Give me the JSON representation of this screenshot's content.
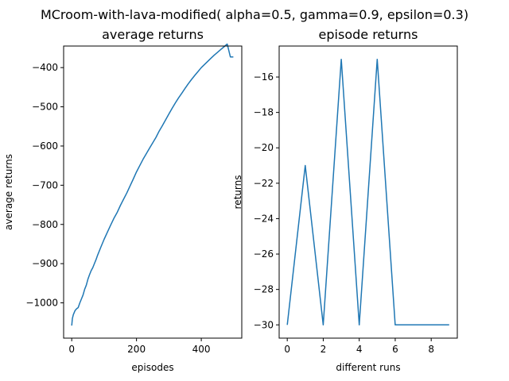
{
  "figure": {
    "suptitle": "MCroom-with-lava-modified( alpha=0.5, gamma=0.9, epsilon=0.3)"
  },
  "colors": {
    "line": "#1f77b4",
    "axis": "#000000",
    "background": "#ffffff"
  },
  "chart_data": [
    {
      "type": "line",
      "title": "average returns",
      "xlabel": "episodes",
      "ylabel": "average returns",
      "xlim": [
        -25,
        525
      ],
      "ylim": [
        -1090,
        -345
      ],
      "xticks": [
        0,
        200,
        400
      ],
      "xtick_labels": [
        "0",
        "200",
        "400"
      ],
      "yticks": [
        -1000,
        -900,
        -800,
        -700,
        -600,
        -500,
        -400
      ],
      "ytick_labels": [
        "−1000",
        "−900",
        "−800",
        "−700",
        "−600",
        "−500",
        "−400"
      ],
      "grid": false,
      "series": [
        {
          "x": [
            0,
            2,
            5,
            10,
            15,
            20,
            25,
            30,
            35,
            40,
            45,
            50,
            55,
            60,
            65,
            70,
            75,
            80,
            90,
            100,
            110,
            120,
            130,
            140,
            150,
            160,
            170,
            180,
            190,
            200,
            210,
            220,
            230,
            240,
            250,
            260,
            270,
            280,
            290,
            300,
            310,
            320,
            330,
            340,
            350,
            360,
            370,
            380,
            390,
            400,
            410,
            420,
            430,
            440,
            450,
            460,
            470,
            480,
            490,
            499
          ],
          "y": [
            -1058,
            -1040,
            -1030,
            -1020,
            -1015,
            -1012,
            -1000,
            -990,
            -980,
            -965,
            -955,
            -940,
            -928,
            -918,
            -910,
            -900,
            -890,
            -878,
            -858,
            -838,
            -820,
            -802,
            -785,
            -770,
            -752,
            -736,
            -720,
            -702,
            -684,
            -666,
            -650,
            -634,
            -620,
            -606,
            -592,
            -578,
            -562,
            -548,
            -533,
            -518,
            -504,
            -490,
            -477,
            -465,
            -453,
            -441,
            -430,
            -420,
            -410,
            -400,
            -392,
            -384,
            -376,
            -368,
            -361,
            -354,
            -347,
            -340,
            -373,
            -373
          ]
        }
      ]
    },
    {
      "type": "line",
      "title": "episode returns",
      "xlabel": "different runs",
      "ylabel": "returns",
      "xlim": [
        -0.45,
        9.45
      ],
      "ylim": [
        -30.75,
        -14.25
      ],
      "xticks": [
        0,
        2,
        4,
        6,
        8
      ],
      "xtick_labels": [
        "0",
        "2",
        "4",
        "6",
        "8"
      ],
      "yticks": [
        -30,
        -28,
        -26,
        -24,
        -22,
        -20,
        -18,
        -16
      ],
      "ytick_labels": [
        "−30",
        "−28",
        "−26",
        "−24",
        "−22",
        "−20",
        "−18",
        "−16"
      ],
      "grid": false,
      "series": [
        {
          "x": [
            0,
            1,
            2,
            3,
            4,
            5,
            6,
            7,
            8,
            9
          ],
          "y": [
            -30,
            -21,
            -30,
            -15,
            -30,
            -15,
            -30,
            -30,
            -30,
            -30
          ]
        }
      ]
    }
  ]
}
